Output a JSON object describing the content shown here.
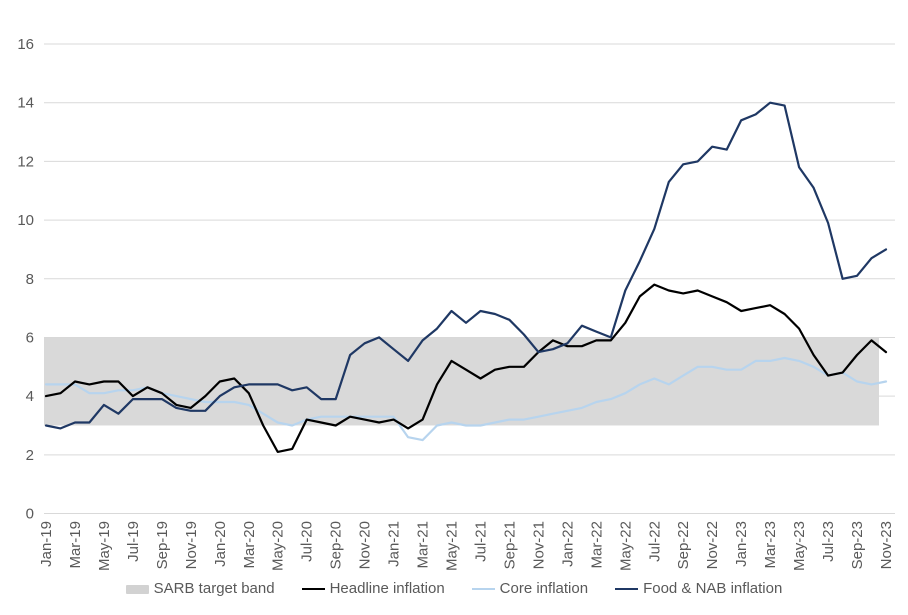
{
  "legend": {
    "items": [
      {
        "label": "SARB target band",
        "type": "band",
        "color": "#d2d2d2"
      },
      {
        "label": "Headline inflation",
        "type": "line",
        "color": "#000000"
      },
      {
        "label": "Core inflation",
        "type": "line",
        "color": "#b7d4ee"
      },
      {
        "label": "Food & NAB inflation",
        "type": "line",
        "color": "#1f3864"
      }
    ]
  },
  "chart_data": {
    "type": "line",
    "title": "",
    "xlabel": "",
    "ylabel": "",
    "ylim": [
      0,
      16
    ],
    "yticks": [
      0,
      2,
      4,
      6,
      8,
      10,
      12,
      14,
      16
    ],
    "grid": "horizontal",
    "gridline_color": "#d9d9d9",
    "axis_text_color": "#595959",
    "x_tick_every": 2,
    "x_tick_label_rotation": -90,
    "legend_position": "bottom",
    "x": [
      "Jan-19",
      "Feb-19",
      "Mar-19",
      "Apr-19",
      "May-19",
      "Jun-19",
      "Jul-19",
      "Aug-19",
      "Sep-19",
      "Oct-19",
      "Nov-19",
      "Dec-19",
      "Jan-20",
      "Feb-20",
      "Mar-20",
      "Apr-20",
      "May-20",
      "Jun-20",
      "Jul-20",
      "Aug-20",
      "Sep-20",
      "Oct-20",
      "Nov-20",
      "Dec-20",
      "Jan-21",
      "Feb-21",
      "Mar-21",
      "Apr-21",
      "May-21",
      "Jun-21",
      "Jul-21",
      "Aug-21",
      "Sep-21",
      "Oct-21",
      "Nov-21",
      "Dec-21",
      "Jan-22",
      "Feb-22",
      "Mar-22",
      "Apr-22",
      "May-22",
      "Jun-22",
      "Jul-22",
      "Aug-22",
      "Sep-22",
      "Oct-22",
      "Nov-22",
      "Dec-22",
      "Jan-23",
      "Feb-23",
      "Mar-23",
      "Apr-23",
      "May-23",
      "Jun-23",
      "Jul-23",
      "Aug-23",
      "Sep-23",
      "Oct-23",
      "Nov-23"
    ],
    "band": {
      "name": "SARB target band",
      "from": 3,
      "to": 6,
      "color": "#d9d9d9"
    },
    "series": [
      {
        "name": "Headline inflation",
        "color": "#000000",
        "values": [
          4.0,
          4.1,
          4.5,
          4.4,
          4.5,
          4.5,
          4.0,
          4.3,
          4.1,
          3.7,
          3.6,
          4.0,
          4.5,
          4.6,
          4.1,
          3.0,
          2.1,
          2.2,
          3.2,
          3.1,
          3.0,
          3.3,
          3.2,
          3.1,
          3.2,
          2.9,
          3.2,
          4.4,
          5.2,
          4.9,
          4.6,
          4.9,
          5.0,
          5.0,
          5.5,
          5.9,
          5.7,
          5.7,
          5.9,
          5.9,
          6.5,
          7.4,
          7.8,
          7.6,
          7.5,
          7.6,
          7.4,
          7.2,
          6.9,
          7.0,
          7.1,
          6.8,
          6.3,
          5.4,
          4.7,
          4.8,
          5.4,
          5.9,
          5.5
        ]
      },
      {
        "name": "Core inflation",
        "color": "#b7d4ee",
        "values": [
          4.4,
          4.4,
          4.4,
          4.1,
          4.1,
          4.2,
          4.2,
          4.3,
          4.1,
          4.0,
          3.9,
          3.8,
          3.8,
          3.8,
          3.7,
          3.4,
          3.1,
          3.0,
          3.2,
          3.3,
          3.3,
          3.3,
          3.3,
          3.3,
          3.3,
          2.6,
          2.5,
          3.0,
          3.1,
          3.0,
          3.0,
          3.1,
          3.2,
          3.2,
          3.3,
          3.4,
          3.5,
          3.6,
          3.8,
          3.9,
          4.1,
          4.4,
          4.6,
          4.4,
          4.7,
          5.0,
          5.0,
          4.9,
          4.9,
          5.2,
          5.2,
          5.3,
          5.2,
          5.0,
          4.7,
          4.8,
          4.5,
          4.4,
          4.5
        ]
      },
      {
        "name": "Food & NAB inflation",
        "color": "#1f3864",
        "values": [
          3.0,
          2.9,
          3.1,
          3.1,
          3.7,
          3.4,
          3.9,
          3.9,
          3.9,
          3.6,
          3.5,
          3.5,
          4.0,
          4.3,
          4.4,
          4.4,
          4.4,
          4.2,
          4.3,
          3.9,
          3.9,
          5.4,
          5.8,
          6.0,
          5.6,
          5.2,
          5.9,
          6.3,
          6.9,
          6.5,
          6.9,
          6.8,
          6.6,
          6.1,
          5.5,
          5.6,
          5.8,
          6.4,
          6.2,
          6.0,
          7.6,
          8.6,
          9.7,
          11.3,
          11.9,
          12.0,
          12.5,
          12.4,
          13.4,
          13.6,
          14.0,
          13.9,
          11.8,
          11.1,
          9.9,
          8.0,
          8.1,
          8.7,
          9.0
        ]
      }
    ]
  }
}
